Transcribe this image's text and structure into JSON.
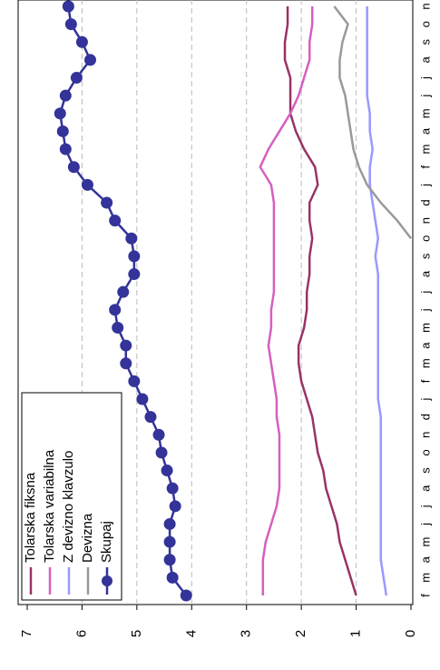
{
  "chart_data": {
    "type": "line",
    "categories": [
      "f",
      "m",
      "a",
      "m",
      "j",
      "j",
      "a",
      "s",
      "o",
      "n",
      "d",
      "j",
      "f",
      "m",
      "a",
      "m",
      "j",
      "j",
      "a",
      "s",
      "o",
      "n",
      "d",
      "j",
      "f",
      "m",
      "a",
      "m",
      "j",
      "j",
      "a",
      "s",
      "o",
      "n"
    ],
    "series": [
      {
        "name": "Tolarska fiksna",
        "color": "#993366",
        "values": [
          1.0,
          1.1,
          1.2,
          1.3,
          1.35,
          1.45,
          1.55,
          1.6,
          1.7,
          1.75,
          1.8,
          1.9,
          2.0,
          2.05,
          2.05,
          1.95,
          1.9,
          1.9,
          1.85,
          1.85,
          1.8,
          1.85,
          1.85,
          1.7,
          1.75,
          1.95,
          2.1,
          2.2,
          2.2,
          2.2,
          2.3,
          2.3,
          2.25,
          2.25
        ]
      },
      {
        "name": "Tolarska variabilna",
        "color": "#d65fc0",
        "values": [
          2.7,
          2.7,
          2.7,
          2.65,
          2.55,
          2.45,
          2.4,
          2.4,
          2.4,
          2.4,
          2.45,
          2.45,
          2.5,
          2.55,
          2.6,
          2.55,
          2.55,
          2.5,
          2.5,
          2.5,
          2.5,
          2.5,
          2.5,
          2.55,
          2.75,
          2.6,
          2.4,
          2.2,
          2.05,
          1.95,
          1.85,
          1.85,
          1.8,
          1.8
        ]
      },
      {
        "name": "Z devizno klavzulo",
        "color": "#9999ff",
        "values": [
          0.45,
          0.5,
          0.55,
          0.55,
          0.55,
          0.55,
          0.55,
          0.55,
          0.55,
          0.55,
          0.55,
          0.6,
          0.6,
          0.6,
          0.6,
          0.6,
          0.6,
          0.6,
          0.6,
          0.65,
          0.6,
          0.65,
          0.7,
          0.75,
          0.75,
          0.7,
          0.75,
          0.75,
          0.8,
          0.8,
          0.8,
          0.8,
          0.8,
          0.8
        ]
      },
      {
        "name": "Devizna",
        "color": "#999999",
        "values": [
          null,
          null,
          null,
          null,
          null,
          null,
          null,
          null,
          null,
          null,
          null,
          null,
          null,
          null,
          null,
          null,
          null,
          null,
          null,
          null,
          0,
          0.25,
          0.55,
          0.8,
          0.95,
          1.05,
          1.1,
          1.15,
          1.2,
          1.3,
          1.3,
          1.25,
          1.15,
          1.4
        ]
      },
      {
        "name": "Skupaj",
        "color": "#333399",
        "marker": true,
        "values": [
          4.1,
          4.35,
          4.4,
          4.4,
          4.4,
          4.3,
          4.35,
          4.45,
          4.55,
          4.6,
          4.75,
          4.9,
          5.05,
          5.2,
          5.2,
          5.35,
          5.4,
          5.25,
          5.05,
          5.05,
          5.1,
          5.4,
          5.55,
          5.9,
          6.15,
          6.3,
          6.35,
          6.4,
          6.3,
          6.1,
          5.85,
          6.0,
          6.2,
          6.25
        ]
      }
    ],
    "ylim": [
      0,
      7
    ],
    "yticks": [
      0,
      1,
      2,
      3,
      4,
      5,
      6,
      7
    ],
    "grid": true
  }
}
